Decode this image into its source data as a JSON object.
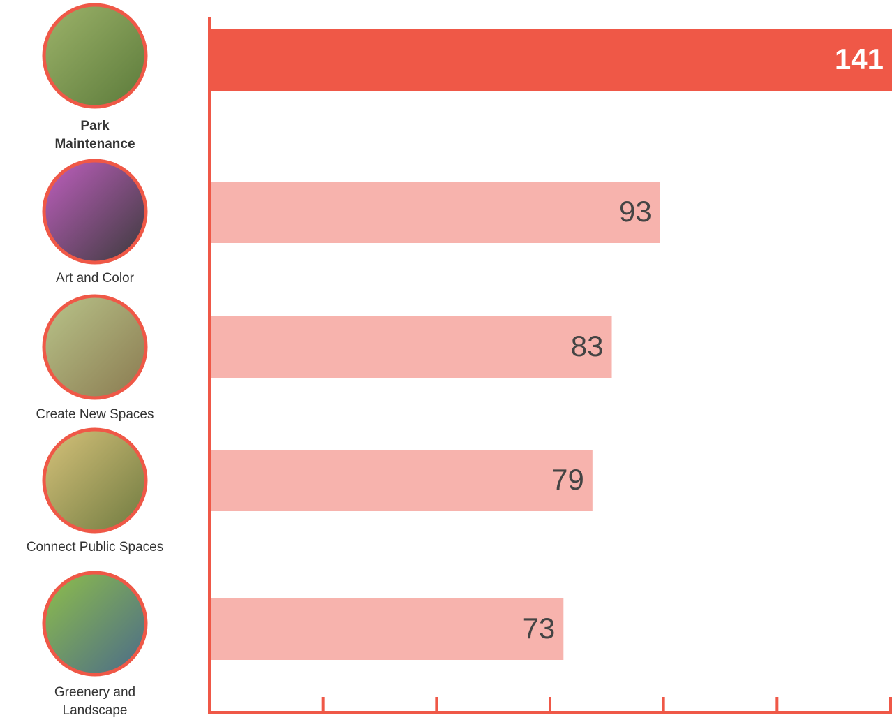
{
  "chart_data": {
    "type": "bar",
    "orientation": "horizontal",
    "categories": [
      "Park Maintenance",
      "Art and Color",
      "Create New Spaces",
      "Connect Public Spaces",
      "Greenery and Landscape"
    ],
    "values": [
      141,
      93,
      83,
      79,
      73
    ],
    "colors": [
      "#ef5847",
      "#f7b3ad",
      "#f7b3ad",
      "#f7b3ad",
      "#f7b3ad"
    ],
    "xlim": [
      0,
      141
    ]
  }
}
